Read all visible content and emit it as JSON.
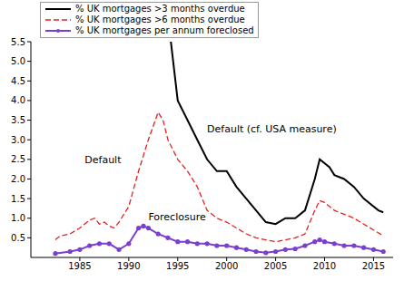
{
  "chart_data": {
    "type": "line",
    "legend": "top-left",
    "grid": false,
    "annotations": [
      "Default (cf. USA measure)",
      "Default",
      "Foreclosure"
    ],
    "xlim": [
      1980,
      2017
    ],
    "xticks": [
      1985,
      1990,
      1995,
      2000,
      2005,
      2010,
      2015
    ],
    "ylim": [
      0,
      5.5
    ],
    "yticks": [
      0.5,
      {
        "value": 1,
        "label": "1.0"
      },
      1.5,
      {
        "value": 2,
        "label": "2.0"
      },
      2.5,
      {
        "value": 3,
        "label": "3.0"
      },
      3.5,
      {
        "value": 4,
        "label": "4.0"
      },
      4.5,
      {
        "value": 5,
        "label": "5.0"
      },
      5.5
    ],
    "series": [
      {
        "name": "% UK mortgages >3 months overdue",
        "color": "#000000",
        "line_style": "solid",
        "marker": "none",
        "x": [
          1994.3,
          1995,
          1996,
          1997,
          1998,
          1999,
          2000,
          2001,
          2002,
          2003,
          2004,
          2005,
          2006,
          2007,
          2008,
          2009,
          2009.5,
          2010.5,
          2011,
          2012,
          2013,
          2014,
          2015.5,
          2016
        ],
        "values": [
          5.5,
          4.0,
          3.5,
          3.0,
          2.5,
          2.2,
          2.2,
          1.8,
          1.5,
          1.2,
          0.9,
          0.85,
          1.0,
          1.0,
          1.2,
          2.0,
          2.5,
          2.3,
          2.1,
          2.0,
          1.8,
          1.5,
          1.2,
          1.15
        ]
      },
      {
        "name": "% UK mortgages >6 months overdue",
        "color": "#e8201e",
        "line_style": "dashed",
        "marker": "none",
        "x": [
          1982.5,
          1983,
          1984,
          1985,
          1986,
          1986.5,
          1987,
          1987.5,
          1988,
          1988.5,
          1989,
          1990,
          1991,
          1992,
          1993,
          1993.5,
          1994,
          1995,
          1996,
          1997,
          1998,
          1999,
          2000,
          2001,
          2002,
          2003,
          2004,
          2005,
          2006,
          2007,
          2008,
          2009,
          2009.5,
          2010,
          2011,
          2012,
          2013,
          2014,
          2015,
          2016
        ],
        "values": [
          0.45,
          0.55,
          0.6,
          0.75,
          0.95,
          1.0,
          0.85,
          0.9,
          0.8,
          0.75,
          0.9,
          1.3,
          2.2,
          3.0,
          3.7,
          3.5,
          3.0,
          2.5,
          2.2,
          1.8,
          1.2,
          1.0,
          0.9,
          0.75,
          0.6,
          0.5,
          0.45,
          0.4,
          0.45,
          0.5,
          0.6,
          1.2,
          1.45,
          1.4,
          1.2,
          1.1,
          1.0,
          0.85,
          0.7,
          0.55
        ]
      },
      {
        "name": "% UK mortgages per annum foreclosed",
        "color": "#7b3fd0",
        "line_style": "solid",
        "marker": "circle",
        "x": [
          1982.5,
          1984,
          1985,
          1986,
          1987,
          1988,
          1989,
          1990,
          1991,
          1991.5,
          1992,
          1993,
          1994,
          1995,
          1996,
          1997,
          1998,
          1999,
          2000,
          2001,
          2002,
          2003,
          2004,
          2005,
          2006,
          2007,
          2008,
          2009,
          2009.5,
          2010,
          2011,
          2012,
          2013,
          2014,
          2015,
          2016
        ],
        "values": [
          0.1,
          0.15,
          0.2,
          0.3,
          0.35,
          0.35,
          0.2,
          0.35,
          0.75,
          0.8,
          0.75,
          0.6,
          0.5,
          0.4,
          0.4,
          0.35,
          0.35,
          0.3,
          0.3,
          0.25,
          0.2,
          0.15,
          0.12,
          0.15,
          0.2,
          0.22,
          0.3,
          0.4,
          0.45,
          0.4,
          0.35,
          0.3,
          0.3,
          0.25,
          0.2,
          0.15
        ]
      }
    ]
  }
}
